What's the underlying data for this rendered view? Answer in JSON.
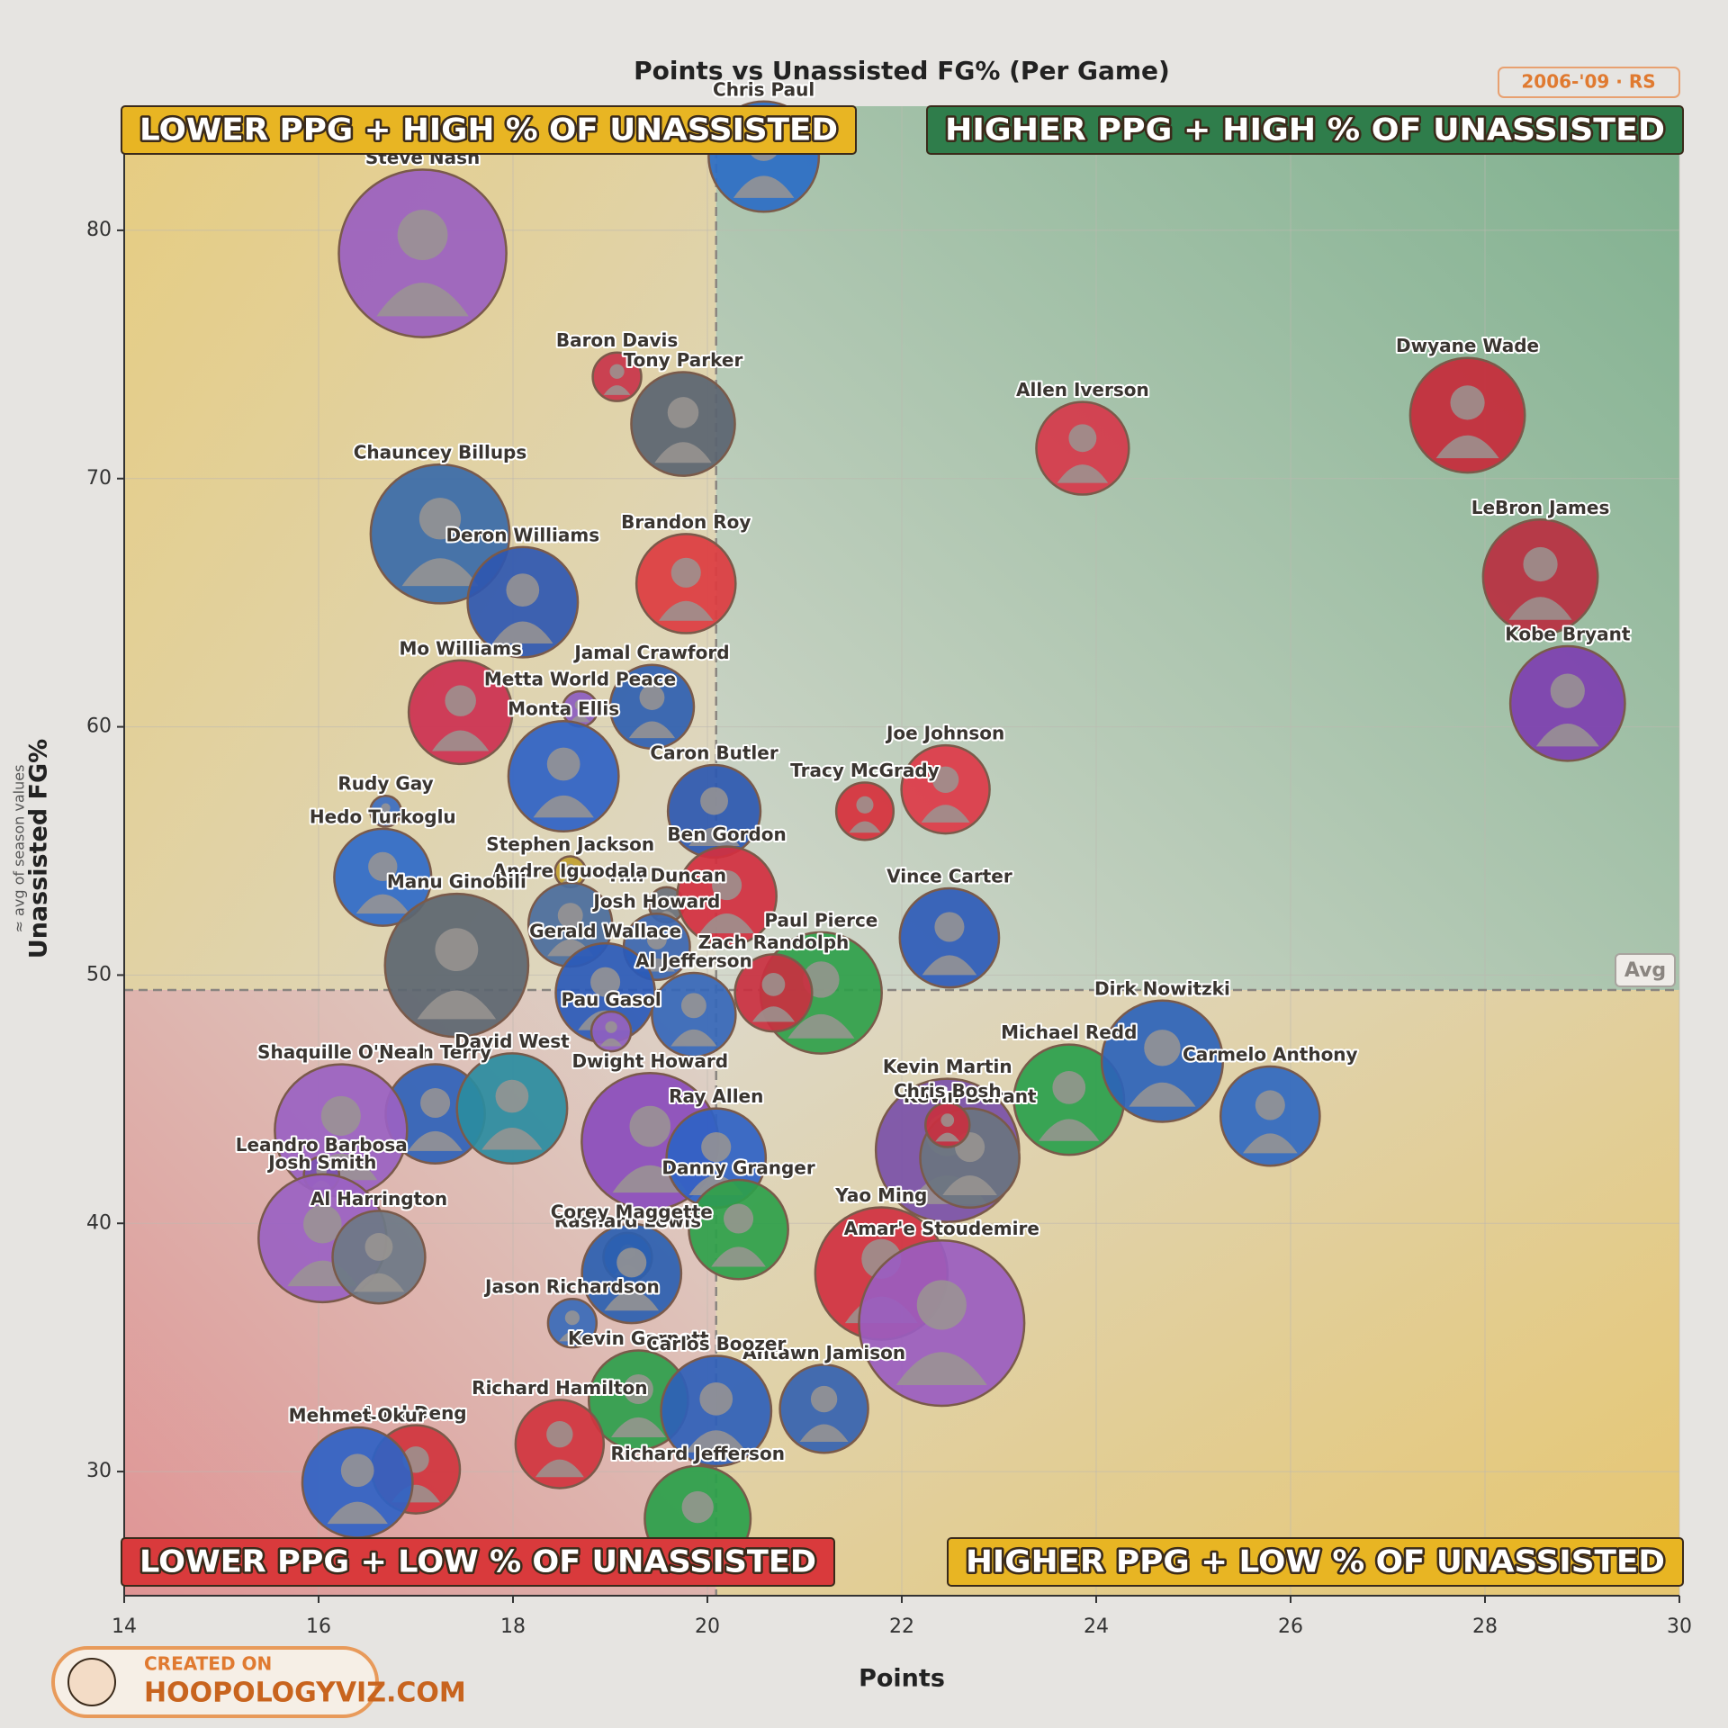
{
  "chart_data": {
    "type": "scatter",
    "title": "Points vs Unassisted FG% (Per Game)",
    "subtitle": "2006-'09 · RS",
    "x_label": "Points",
    "y_label": "Unassisted FG%",
    "y_label_note": "≈ avg of season values",
    "avg_label": "Avg",
    "avg_x": 20.09,
    "avg_y": 49.4,
    "xlim": [
      14,
      30
    ],
    "ylim": [
      25,
      85
    ],
    "xticks": [
      14,
      16,
      18,
      20,
      22,
      24,
      26,
      28,
      30
    ],
    "yticks": [
      30,
      40,
      50,
      60,
      70,
      80
    ],
    "grid": true,
    "quadrants": [
      "LOWER PPG + HIGH % OF UNASSISTED",
      "HIGHER PPG + HIGH % OF UNASSISTED",
      "LOWER PPG + LOW % OF UNASSISTED",
      "HIGHER PPG + LOW % OF UNASSISTED"
    ],
    "quadrant_colors": [
      "#e8b523",
      "#2f7d4b",
      "#d93a3c",
      "#e8b523"
    ],
    "labels": [
      "Steve Nash",
      "Chris Paul",
      "Baron Davis",
      "Tony Parker",
      "Allen Iverson",
      "Dwyane Wade",
      "LeBron James",
      "Kobe Bryant",
      "Chauncey Billups",
      "Deron Williams",
      "Brandon Roy",
      "Mo Williams",
      "Jamal Crawford",
      "Metta World Peace",
      "Monta Ellis",
      "Caron Butler",
      "Tracy McGrady",
      "Joe Johnson",
      "Rudy Gay",
      "Hedo Turkoglu",
      "Stephen Jackson",
      "Tim Duncan",
      "Ben Gordon",
      "Vince Carter",
      "Andre Iguodala",
      "Manu Ginobili",
      "Paul Pierce",
      "Josh Howard",
      "Zach Randolph",
      "Al Jefferson",
      "Gerald Wallace",
      "Pau Gasol",
      "Jason Terry",
      "David West",
      "Shaquille O'Neal",
      "Leandro Barbosa",
      "Dwight Howard",
      "Ray Allen",
      "Danny Granger",
      "Josh Smith",
      "Al Harrington",
      "Rashard Lewis",
      "Corey Maggette",
      "Jason Richardson",
      "Kevin Martin",
      "Kevin Durant",
      "Michael Redd",
      "Chris Bosh",
      "Dirk Nowitzki",
      "Carmelo Anthony",
      "Yao Ming",
      "Amar'e Stoudemire",
      "Antawn Jamison",
      "Kevin Garnett",
      "Richard Hamilton",
      "Carlos Boozer",
      "Richard Jefferson",
      "Luol Deng",
      "Mehmet Okur"
    ],
    "x": [
      17.07,
      20.58,
      19.07,
      19.75,
      23.86,
      27.82,
      28.57,
      28.85,
      17.25,
      18.1,
      19.78,
      17.46,
      19.43,
      18.69,
      18.52,
      20.07,
      21.62,
      22.45,
      16.69,
      16.66,
      18.59,
      19.58,
      20.2,
      22.49,
      18.59,
      17.42,
      21.17,
      19.48,
      20.68,
      19.86,
      18.95,
      19.01,
      17.2,
      17.99,
      16.23,
      16.03,
      19.41,
      20.09,
      20.32,
      16.04,
      16.62,
      19.18,
      19.22,
      18.61,
      22.47,
      22.7,
      23.72,
      22.47,
      24.68,
      25.79,
      21.79,
      22.41,
      21.2,
      19.29,
      18.48,
      20.09,
      19.9,
      17.0,
      16.4
    ],
    "values": [
      79.07,
      82.97,
      74.1,
      72.2,
      71.22,
      72.55,
      66.04,
      60.94,
      67.77,
      65.02,
      65.77,
      60.59,
      60.81,
      60.72,
      58.01,
      56.6,
      56.6,
      57.48,
      56.6,
      53.94,
      54.16,
      52.83,
      53.18,
      51.5,
      52.03,
      50.39,
      49.28,
      51.14,
      49.28,
      48.4,
      49.28,
      47.73,
      44.41,
      44.63,
      43.74,
      41.97,
      43.3,
      42.63,
      39.75,
      39.4,
      38.64,
      38.64,
      37.98,
      35.98,
      42.94,
      42.63,
      44.98,
      43.96,
      46.53,
      44.32,
      37.98,
      35.98,
      32.53,
      32.88,
      31.11,
      32.44,
      28.1,
      30.09,
      29.56
    ],
    "sizes": [
      76,
      50,
      22,
      47,
      42,
      52,
      52,
      52,
      63,
      50,
      45,
      47,
      38,
      16,
      50,
      42,
      26,
      40,
      14,
      44,
      14,
      16,
      45,
      45,
      38,
      65,
      55,
      30,
      35,
      38,
      45,
      18,
      45,
      50,
      60,
      16,
      62,
      45,
      45,
      58,
      42,
      22,
      45,
      22,
      65,
      45,
      50,
      20,
      55,
      45,
      60,
      75,
      40,
      45,
      40,
      50,
      48,
      40,
      50
    ],
    "colors": [
      "#9a5fc0",
      "#2b6cc4",
      "#c8344a",
      "#5a6470",
      "#d6384a",
      "#c52a3a",
      "#b82f40",
      "#7d3fb0",
      "#3a6aa8",
      "#2f57b0",
      "#dc3c40",
      "#cc3050",
      "#2f5fb0",
      "#8c5cc0",
      "#2f62c4",
      "#2c58b0",
      "#d6303c",
      "#dd3a48",
      "#3b6cc0",
      "#2f6ac8",
      "#c0a030",
      "#6a7078",
      "#d32f3f",
      "#2e5bb8",
      "#4a6c9c",
      "#5c6670",
      "#2fa04a",
      "#3b66b0",
      "#c93040",
      "#3567b8",
      "#2a5ab8",
      "#8f5fc0",
      "#2f62b8",
      "#2a8ca0",
      "#9a62c2",
      "#7a4fb0",
      "#8a4cbc",
      "#2f62c4",
      "#2ea04a",
      "#9a62c2",
      "#6c7886",
      "#2b64b8",
      "#2b5fb0",
      "#3a6ab8",
      "#7a50a8",
      "#6a7480",
      "#2aa04c",
      "#c83040",
      "#2d63b8",
      "#3068c0",
      "#d03040",
      "#9a5cc0",
      "#3562b0",
      "#2e9e4c",
      "#d0343e",
      "#2f5fb8",
      "#2aa04a",
      "#d0343e",
      "#2f62c4"
    ],
    "branding": [
      "CREATED ON",
      "HOOPOLOGYVIZ.COM"
    ]
  }
}
